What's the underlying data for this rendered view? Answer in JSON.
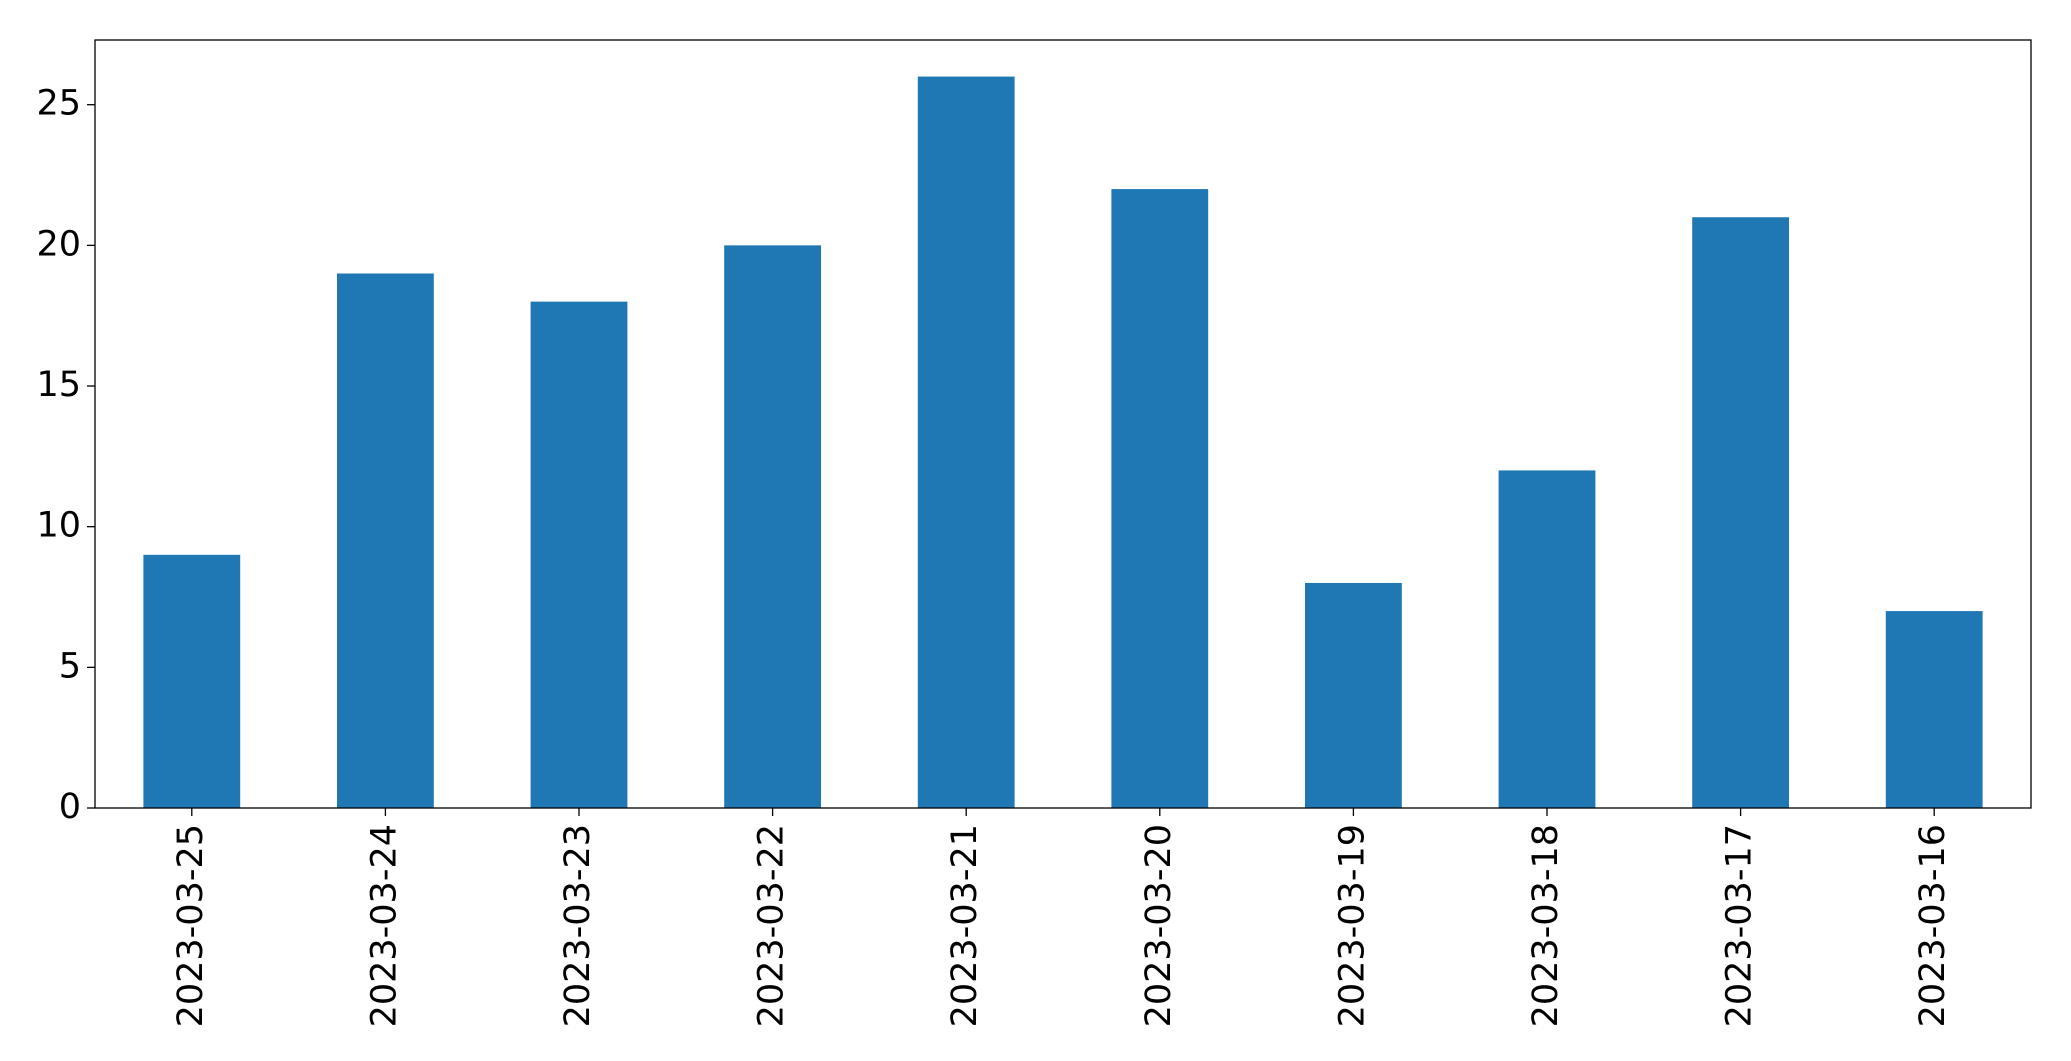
{
  "chart_data": {
    "type": "bar",
    "categories": [
      "2023-03-25",
      "2023-03-24",
      "2023-03-23",
      "2023-03-22",
      "2023-03-21",
      "2023-03-20",
      "2023-03-19",
      "2023-03-18",
      "2023-03-17",
      "2023-03-16"
    ],
    "values": [
      9,
      19,
      18,
      20,
      26,
      22,
      8,
      12,
      21,
      7
    ],
    "color": "#1f77b4",
    "ylim": [
      0,
      27.3
    ],
    "yticks": [
      0,
      5,
      10,
      15,
      20,
      25
    ],
    "grid": false
  }
}
